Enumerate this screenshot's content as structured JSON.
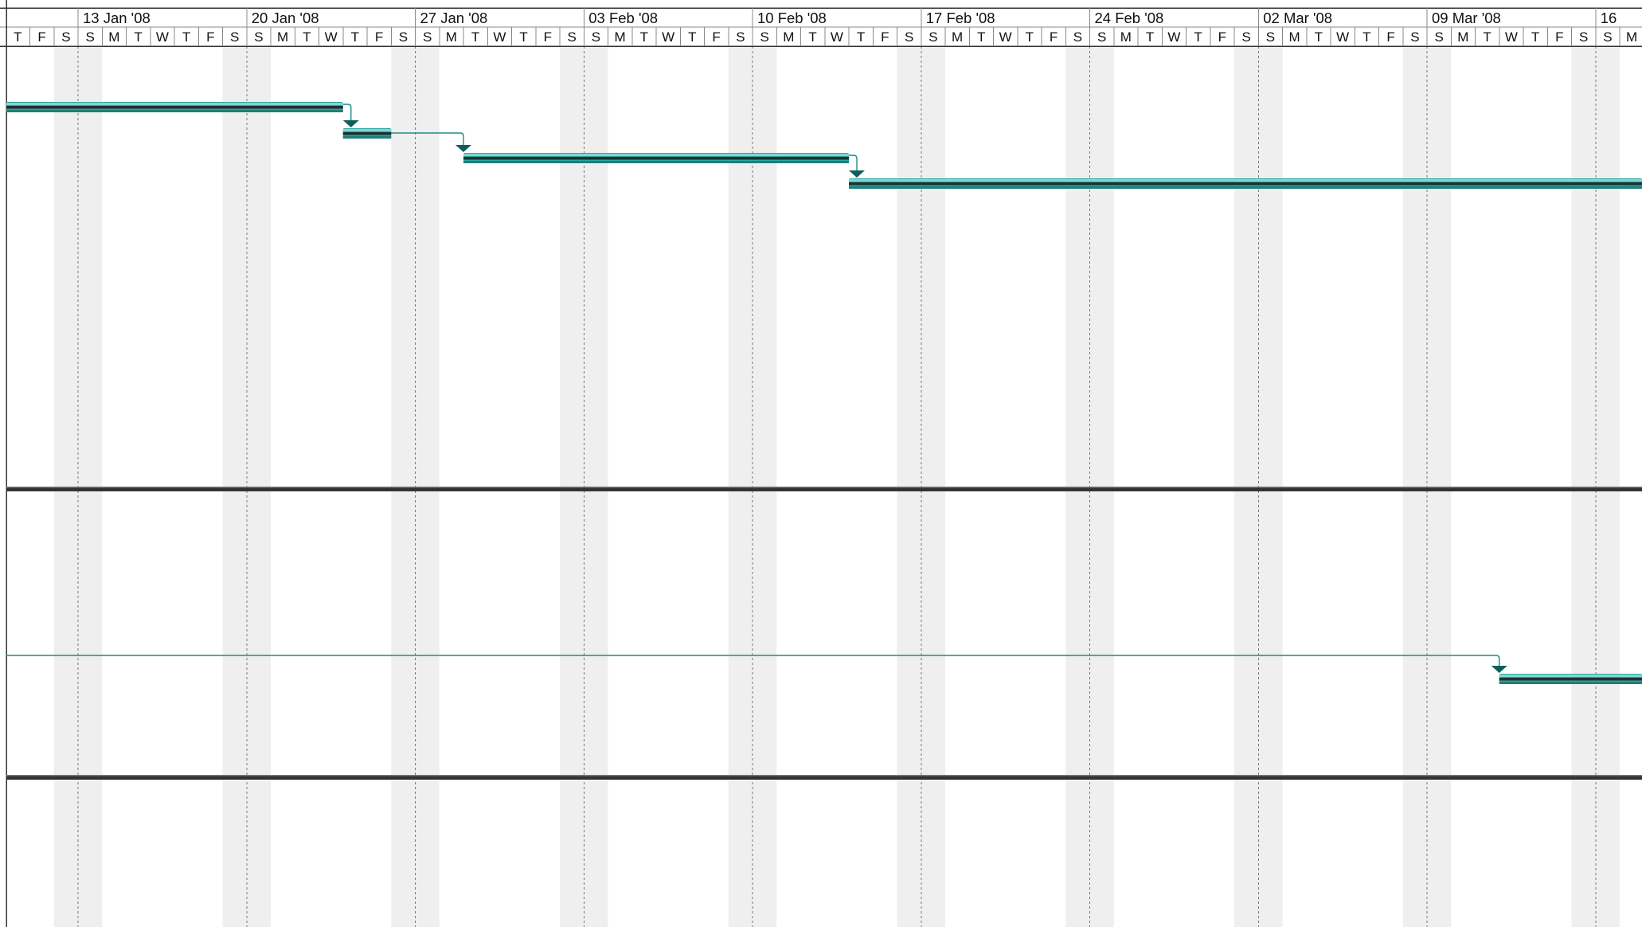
{
  "timescale": {
    "week_labels": [
      "13 Jan '08",
      "20 Jan '08",
      "27 Jan '08",
      "03 Feb '08",
      "10 Feb '08",
      "17 Feb '08",
      "24 Feb '08",
      "02 Mar '08",
      "09 Mar '08",
      "16"
    ],
    "leading_day_letters": [
      "T",
      "F",
      "S"
    ],
    "week_day_letters": [
      "S",
      "M",
      "T",
      "W",
      "T",
      "F",
      "S"
    ],
    "trailing_day_letters": [
      "S",
      "M"
    ]
  },
  "tasks": [
    {
      "start_day": -3,
      "end_day": 11
    },
    {
      "start_day": 11,
      "end_day": 13
    },
    {
      "start_day": 16,
      "end_day": 32
    },
    {
      "start_day": 32,
      "end_day": 68
    },
    {
      "start_day": 59,
      "end_day": 68
    }
  ],
  "links": [
    {
      "from_task": 0,
      "to_task": 1
    },
    {
      "from_task": 1,
      "to_task": 2
    },
    {
      "from_task": 2,
      "to_task": 3
    },
    {
      "from_task": "off-left",
      "to_task": 4
    }
  ],
  "colors": {
    "bar": "#2aa7a1",
    "bar_highlight": "#7fd6d2",
    "bar_shadow": "#20302f",
    "link": "#1f8c86",
    "weekend_shading": "#efefef"
  }
}
